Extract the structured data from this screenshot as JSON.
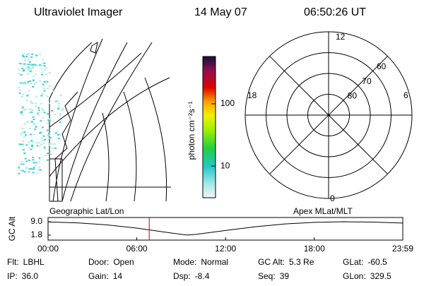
{
  "header": {
    "title": "Ultraviolet Imager",
    "date": "14 May 07",
    "time": "06:50:26 UT"
  },
  "colorbar": {
    "label": "photon cm⁻²s⁻¹",
    "scale": "log",
    "lim": [
      3.1,
      575
    ],
    "ticks": [
      10,
      100
    ]
  },
  "polar": {
    "lat_range": [
      50,
      90
    ],
    "mlt_labels": {
      "top": "12",
      "left": "18",
      "right": "6",
      "bottom": "0"
    },
    "lat_rings": [
      60,
      70,
      80
    ]
  },
  "altitude": {
    "type": "line",
    "y_label": "GC Alt",
    "left_label": "Geographic Lat/Lon",
    "right_label": "Apex MLat/MLT",
    "x": [
      0,
      2,
      4,
      6,
      8,
      9.4,
      10,
      12,
      14,
      16,
      18,
      20,
      22,
      23.983
    ],
    "values": [
      8.9,
      8.4,
      7.3,
      5.6,
      3.3,
      1.8,
      2.2,
      4.3,
      6.3,
      7.8,
      8.7,
      9.0,
      8.8,
      8.3
    ],
    "color": "#000000",
    "marker_x": 6.84,
    "marker_color": "#c00000",
    "xlim": [
      0,
      23.983
    ],
    "ylim": [
      -0.9,
      11.3
    ],
    "xticks": [
      {
        "value": 0,
        "label": "00:00"
      },
      {
        "value": 6,
        "label": "06:00"
      },
      {
        "value": 12,
        "label": "12:00"
      },
      {
        "value": 18,
        "label": "18:00"
      },
      {
        "value": 23.983,
        "label": "23:59"
      }
    ],
    "yticks": [
      {
        "value": 9,
        "label": "9.0"
      },
      {
        "value": 1.8,
        "label": "1.8"
      }
    ]
  },
  "footer": [
    [
      {
        "label": "Flt:",
        "value": "LBHL"
      },
      {
        "label": "Door:",
        "value": "Open"
      },
      {
        "label": "Mode:",
        "value": "Normal"
      },
      {
        "label": "GC Alt:",
        "value": "5.3 Re"
      },
      {
        "label": "GLat:",
        "value": "-60.5"
      }
    ],
    [
      {
        "label": "IP:",
        "value": "36.0"
      },
      {
        "label": "Gain:",
        "value": "14"
      },
      {
        "label": "Dsp:",
        "value": "-8.4"
      },
      {
        "label": "Seq:",
        "value": "39"
      },
      {
        "label": "GLon:",
        "value": "329.5"
      }
    ]
  ]
}
